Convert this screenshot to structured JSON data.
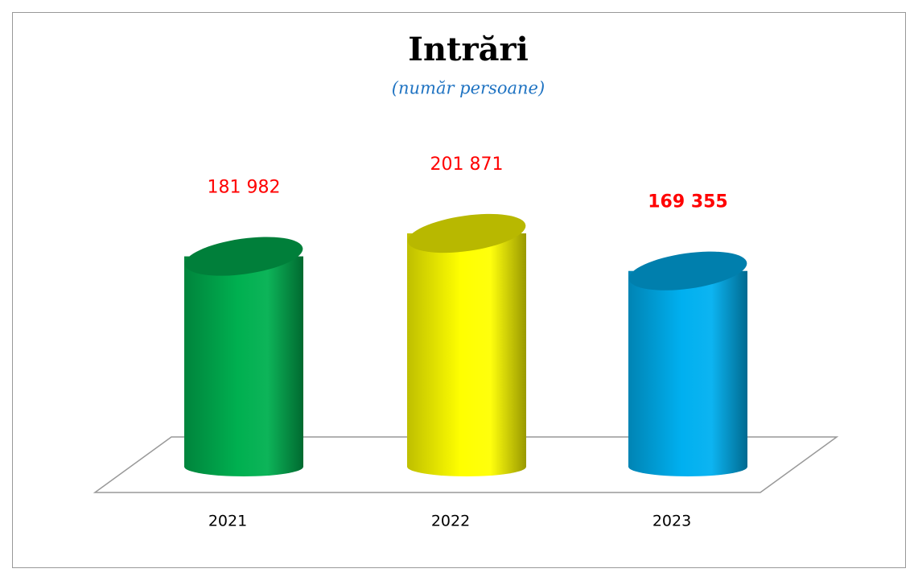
{
  "chart_data": {
    "type": "bar3d-cylinder",
    "title": "Intrări",
    "subtitle": "(număr persoane)",
    "categories": [
      "2021",
      "2022",
      "2023"
    ],
    "values": [
      181982,
      201871,
      169355
    ],
    "value_labels": [
      "181 982",
      "201 871",
      "169 355"
    ],
    "value_label_weights": [
      "normal",
      "normal",
      "bold"
    ],
    "colors": [
      "#00b050",
      "#ffff00",
      "#00b0f0"
    ]
  }
}
